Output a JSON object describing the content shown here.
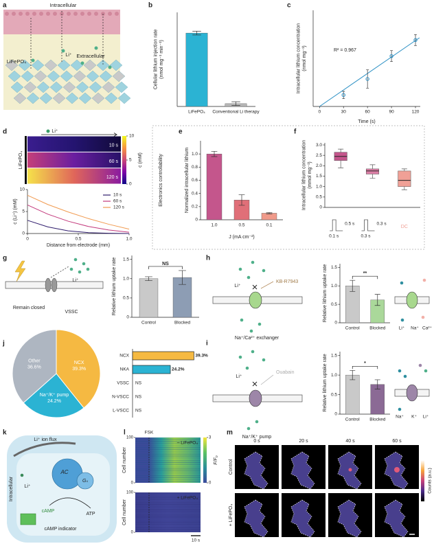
{
  "panel_letters": [
    "a",
    "b",
    "c",
    "d",
    "e",
    "f",
    "g",
    "h",
    "j",
    "i",
    "k",
    "l",
    "m"
  ],
  "figure": {
    "a": {
      "intracellular": "Intracellular",
      "ion": "Li⁺",
      "extracellular": "Extracellular",
      "material": "LiFePO₄"
    },
    "g": {
      "ion": "Li⁺",
      "state": "Remain closed",
      "channel": "VSSC"
    },
    "h": {
      "ion": "Li⁺",
      "blocker": "KB-R7943",
      "transporter": "Na⁺/Ca²⁺ exchanger",
      "icon_labels": [
        "Li⁺",
        "Na⁺",
        "Ca²⁺"
      ]
    },
    "i": {
      "ion": "Li⁺",
      "blocker": "Ouabain",
      "transporter": "Na⁺/K⁺ pump",
      "icon_labels": [
        "Na⁺",
        "K⁺",
        "Li⁺"
      ]
    },
    "k": {
      "flux": "Li⁺ ion flux",
      "side": "Intracellular",
      "ion": "Li⁺",
      "enzyme": "AC",
      "protein": "Gₛ",
      "product": "cAMP",
      "substrate": "ATP",
      "indicator": "cAMP indicator"
    },
    "m": {
      "times": [
        "0 s",
        "20 s",
        "40 s",
        "60 s"
      ],
      "rows": [
        "Control",
        "+ LiFePO₄"
      ],
      "colorbar_label": "Counts (a.u.)"
    }
  },
  "chart_data": [
    {
      "type": "bar",
      "y_label": [
        "Cellular lithium injection rate",
        "(nmol mg⁻¹ min⁻¹)"
      ],
      "categories": [
        "LiFePO₄",
        "Conventional Li therapy"
      ],
      "values": [
        0.78,
        0.03
      ],
      "errors": [
        0.02,
        0.02
      ],
      "colors": [
        "#2bb3d3",
        "#b8b8b8"
      ],
      "ylim": [
        0,
        1
      ]
    },
    {
      "type": "scatter",
      "x": [
        30,
        60,
        90,
        120
      ],
      "values": [
        0.25,
        0.6,
        1.1,
        1.45
      ],
      "errors": [
        0.08,
        0.2,
        0.12,
        0.12
      ],
      "trend": {
        "x": [
          0,
          125
        ],
        "values": [
          0,
          1.5
        ]
      },
      "annotation": "R² = 0.967",
      "xlim": [
        -8,
        126
      ],
      "ylim": [
        0,
        2.1
      ],
      "xticks": [
        0,
        30,
        60,
        90,
        120
      ],
      "x_label": "Time (s)",
      "y_label": [
        "Intracellular lithium concentration",
        "(nmol mg⁻¹)"
      ],
      "color": "#2a8fc4"
    },
    {
      "type": "heatmap",
      "annotation": "Li⁺",
      "row_label": "LiFePO₄",
      "labels": [
        "10 s",
        "60 s",
        "120 s"
      ],
      "clim": [
        0,
        10
      ],
      "cticks": [
        0,
        5,
        10
      ],
      "colorbar_label": "c (mM)"
    },
    {
      "type": "line",
      "x": [
        0,
        0.2,
        0.4,
        0.6,
        0.8,
        1.0
      ],
      "series": [
        {
          "name": "10 s",
          "color": "#2d1a6b",
          "values": [
            3.0,
            1.5,
            0.6,
            0.2,
            0.05,
            0.0
          ]
        },
        {
          "name": "60 s",
          "color": "#c2377b",
          "values": [
            6.5,
            4.4,
            2.8,
            1.6,
            0.8,
            0.3
          ]
        },
        {
          "name": "120 s",
          "color": "#f19a4f",
          "values": [
            8.7,
            6.6,
            4.9,
            3.4,
            2.1,
            1.0
          ]
        }
      ],
      "xlim": [
        0,
        1
      ],
      "ylim": [
        0,
        10
      ],
      "xticks": [
        0,
        0.5,
        {
          "value": 1,
          "label": "1.0"
        }
      ],
      "yticks": [
        0,
        5,
        10
      ],
      "x_label": "Distance from electrode (mm)",
      "y_label": "c (Li⁺) (mM)",
      "legend": "upper right"
    },
    {
      "type": "bar",
      "side_label": "Electronics controllability",
      "y_label": "Normalized intracellular lithium",
      "x_label": "J (mA cm⁻²)",
      "categories": [
        "1.0",
        "0.5",
        "0.1"
      ],
      "values": [
        1.0,
        0.3,
        0.1
      ],
      "errors": [
        0.04,
        0.08,
        0.01
      ],
      "colors": [
        "#c4568c",
        "#e06f78",
        "#f09a8a"
      ],
      "ylim": [
        0,
        1.2
      ],
      "yticks": [
        0,
        0.2,
        0.4,
        0.6,
        0.8,
        {
          "value": 1,
          "label": "1.0"
        }
      ]
    },
    {
      "type": "box",
      "categories": [
        "0.1 s",
        "0.3 s",
        "DC"
      ],
      "interval_labels": [
        "0.5 s",
        "0.3 s",
        null
      ],
      "low": [
        1.9,
        1.4,
        0.85
      ],
      "q1": [
        2.25,
        1.6,
        1.0
      ],
      "median": [
        2.45,
        1.75,
        1.3
      ],
      "q3": [
        2.65,
        1.85,
        1.75
      ],
      "high": [
        2.8,
        2.05,
        1.85
      ],
      "colors": [
        "#c4568c",
        "#dc7fa6",
        "#f0a096"
      ],
      "ylim": [
        0,
        3.1
      ],
      "yticks": [
        0,
        0.5,
        {
          "value": 1,
          "label": "1.0"
        },
        1.5,
        {
          "value": 2,
          "label": "2.0"
        },
        2.5,
        {
          "value": 3,
          "label": "3.0"
        }
      ],
      "y_label": [
        "Intracellular lithium concentration",
        "(mmol mg⁻¹)"
      ]
    },
    {
      "type": "bar",
      "categories": [
        "Control",
        "Blocked"
      ],
      "values": [
        1.0,
        1.03
      ],
      "errors": [
        0.05,
        0.18
      ],
      "colors": [
        "#c9c9c9",
        "#8d9db4"
      ],
      "ylim": [
        0,
        1.6
      ],
      "yticks": [
        0,
        0.5,
        {
          "value": 1,
          "label": "1.0"
        },
        1.5
      ],
      "y_label": "Relative lithium uptake rate",
      "significance": "NS"
    },
    {
      "type": "bar",
      "categories": [
        "Control",
        "Blocked"
      ],
      "values": [
        1.0,
        0.62
      ],
      "errors": [
        0.15,
        0.15
      ],
      "colors": [
        "#c9c9c9",
        "#aad89a"
      ],
      "ylim": [
        0,
        1.6
      ],
      "yticks": [
        0,
        0.5,
        {
          "value": 1,
          "label": "1.0"
        },
        1.5
      ],
      "y_label": "Relative lithium uptake rate",
      "significance": "**"
    },
    {
      "type": "bar",
      "categories": [
        "Control",
        "Blocked"
      ],
      "values": [
        1.0,
        0.76
      ],
      "errors": [
        0.12,
        0.12
      ],
      "colors": [
        "#c9c9c9",
        "#8b6a95"
      ],
      "ylim": [
        0,
        1.6
      ],
      "yticks": [
        0,
        0.5,
        {
          "value": 1,
          "label": "1.0"
        },
        1.5
      ],
      "y_label": "Relative lithium uptake rate",
      "significance": "*"
    },
    {
      "type": "pie",
      "categories": [
        "NCX",
        "Na⁺/K⁺ pump",
        "Other"
      ],
      "values": [
        39.3,
        24.2,
        36.6
      ],
      "value_labels": [
        "39.3%",
        "24.2%",
        "36.6%"
      ],
      "colors": [
        "#f5b942",
        "#2bb3d3",
        "#aeb6c1"
      ]
    },
    {
      "type": "hbar",
      "categories": [
        "NCX",
        "NKA",
        "VSSC",
        "N-VSCC",
        "L-VSCC"
      ],
      "values": [
        39.3,
        24.2,
        null,
        null,
        null
      ],
      "value_labels": [
        "39.3%",
        "24.2%",
        "NS",
        "NS",
        "NS"
      ],
      "colors": [
        "#f5b942",
        "#2bb3d3"
      ],
      "xlim": [
        0,
        40
      ]
    },
    {
      "type": "raster",
      "marker_label": "FSK",
      "panel_labels": [
        "– LiFePO₄",
        "+ LiFePO₄"
      ],
      "y_label": "Cell number",
      "ylim": [
        0,
        100
      ],
      "yticks": [
        0,
        100
      ],
      "clim": [
        0,
        3
      ],
      "cticks": [
        0,
        3
      ],
      "colorbar_label": "F/F₀",
      "scale_label": "10 s"
    }
  ]
}
